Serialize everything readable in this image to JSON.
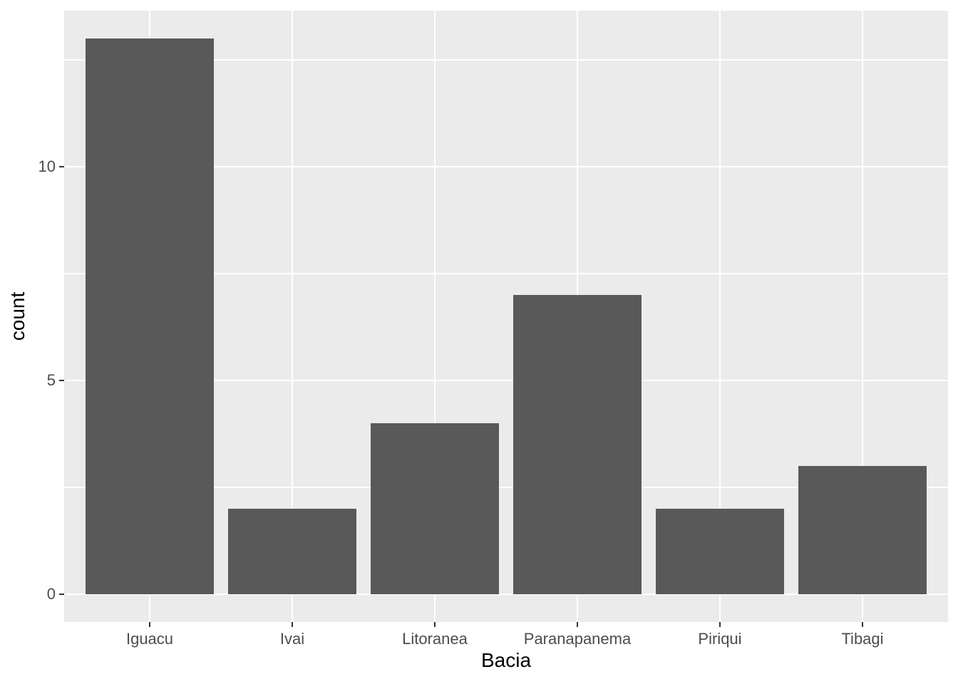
{
  "chart_data": {
    "type": "bar",
    "categories": [
      "Iguacu",
      "Ivai",
      "Litoranea",
      "Paranapanema",
      "Piriqui",
      "Tibagi"
    ],
    "values": [
      13,
      2,
      4,
      7,
      2,
      3
    ],
    "title": "",
    "xlabel": "Bacia",
    "ylabel": "count",
    "yticks": [
      0,
      5,
      10
    ],
    "minor_yticks": [
      2.5,
      7.5,
      12.5
    ],
    "ylim": [
      -0.65,
      13.65
    ],
    "legend": "none",
    "grid": "on",
    "colors": {
      "bar_fill": "#595959",
      "panel_background": "#EBEBEB",
      "gridline": "#FFFFFF",
      "tick_label": "#4D4D4D",
      "tick_mark": "#333333",
      "axis_title": "#000000",
      "page_background": "#FFFFFF"
    }
  }
}
